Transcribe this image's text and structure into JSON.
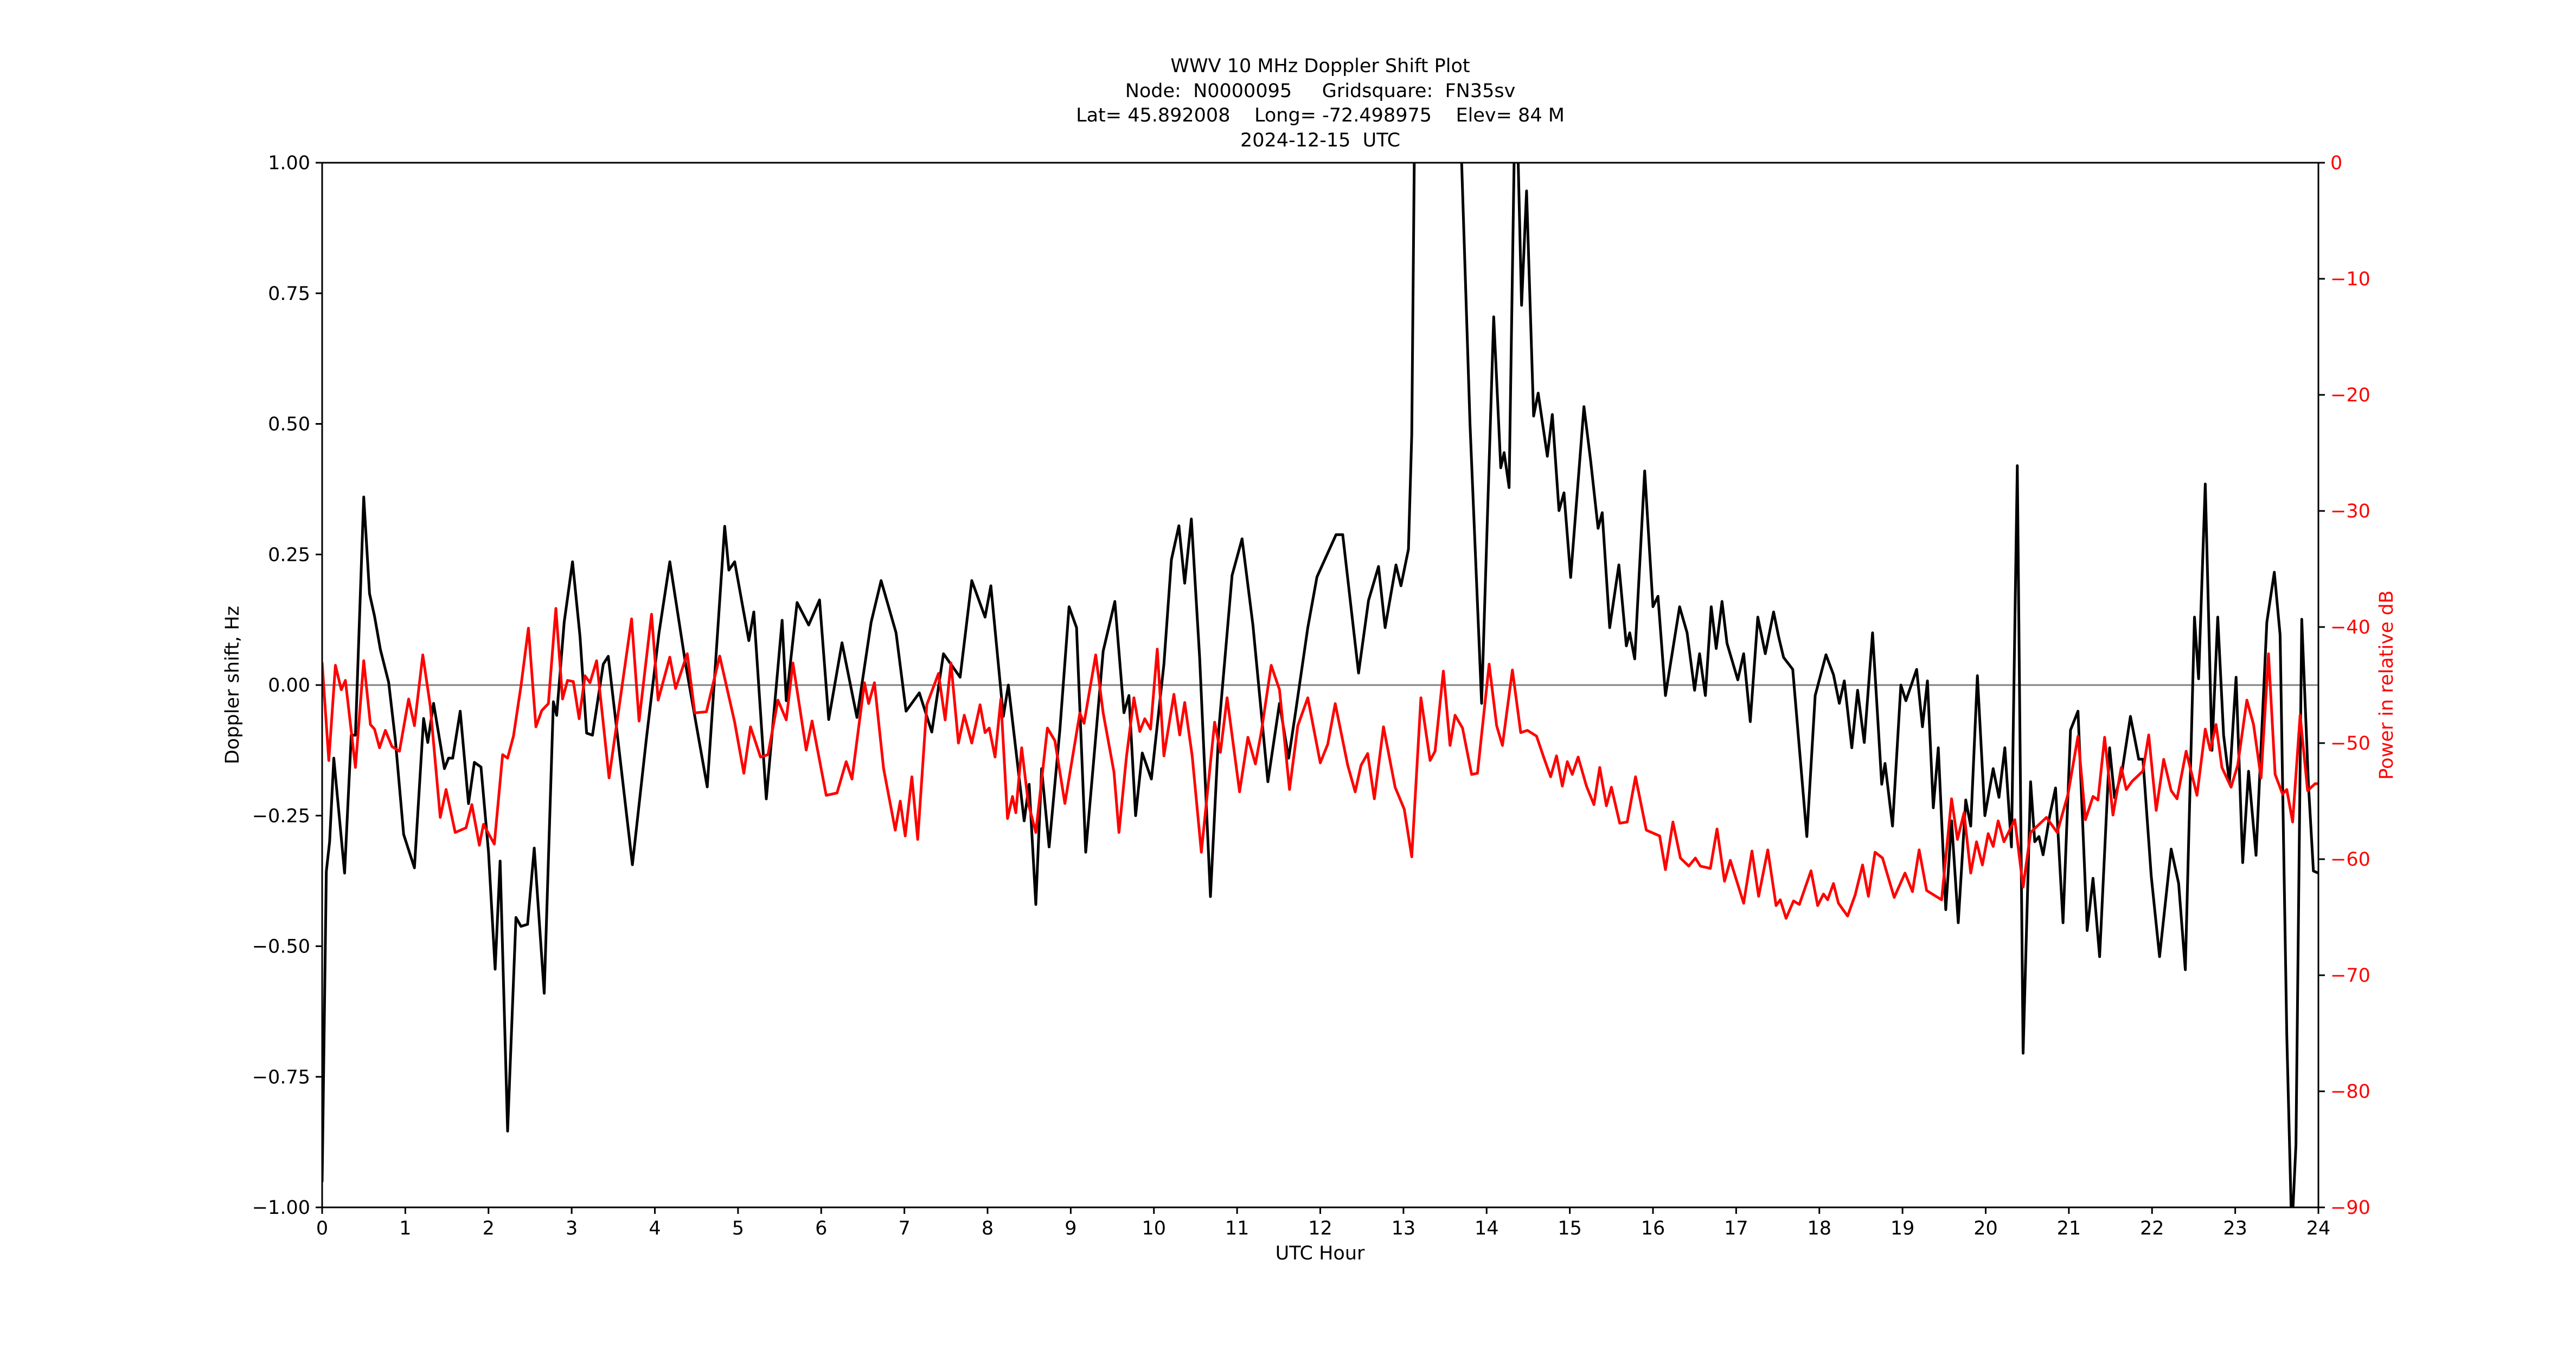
{
  "figure": {
    "title_lines": [
      "WWV 10 MHz Doppler Shift Plot",
      "Node:  N0000095     Gridsquare:  FN35sv",
      "Lat= 45.892008    Long= -72.498975    Elev= 84 M",
      "2024-12-15  UTC"
    ],
    "xlabel": "UTC Hour",
    "ylabel_left": "Doppler shift, Hz",
    "ylabel_right": "Power in relative dB",
    "colors": {
      "doppler": "#000000",
      "power": "#ff0000",
      "zero_line": "#808080",
      "right_axis_text": "#ff0000"
    }
  },
  "chart_data": {
    "type": "line",
    "title": "WWV 10 MHz Doppler Shift Plot",
    "subtitle": "Node:  N0000095     Gridsquare:  FN35sv | Lat= 45.892008    Long= -72.498975    Elev= 84 M | 2024-12-15  UTC",
    "xlabel": "UTC Hour",
    "ylabel": "Doppler shift, Hz",
    "ylabel_right": "Power in relative dB",
    "xlim": [
      0,
      24
    ],
    "ylim": [
      -1.0,
      1.0
    ],
    "ylim_right": [
      -90,
      0
    ],
    "x_ticks": [
      0,
      1,
      2,
      3,
      4,
      5,
      6,
      7,
      8,
      9,
      10,
      11,
      12,
      13,
      14,
      15,
      16,
      17,
      18,
      19,
      20,
      21,
      22,
      23,
      24
    ],
    "y_ticks": [
      "1.00",
      "0.75",
      "0.50",
      "0.25",
      "0.00",
      "−0.25",
      "−0.50",
      "−0.75",
      "−1.00"
    ],
    "y_tick_values": [
      1.0,
      0.75,
      0.5,
      0.25,
      0.0,
      -0.25,
      -0.5,
      -0.75,
      -1.0
    ],
    "y_ticks_right": [
      "0",
      "−10",
      "−20",
      "−30",
      "−40",
      "−50",
      "−60",
      "−70",
      "−80",
      "−90"
    ],
    "y_tick_values_right": [
      0,
      -10,
      -20,
      -30,
      -40,
      -50,
      -60,
      -70,
      -80,
      -90
    ],
    "grid": false,
    "hline": {
      "y": 0.0,
      "color": "#808080"
    },
    "legend": null,
    "series": [
      {
        "name": "Doppler shift (Hz)",
        "axis": "left",
        "color": "#000000",
        "x": [
          0.0,
          0.05,
          0.09,
          0.14,
          0.27,
          0.35,
          0.4,
          0.5,
          0.57,
          0.63,
          0.7,
          0.8,
          0.88,
          0.98,
          1.11,
          1.22,
          1.27,
          1.34,
          1.47,
          1.52,
          1.57,
          1.66,
          1.76,
          1.83,
          1.91,
          2.0,
          2.08,
          2.14,
          2.23,
          2.33,
          2.39,
          2.47,
          2.55,
          2.67,
          2.78,
          2.82,
          2.91,
          3.01,
          3.1,
          3.18,
          3.25,
          3.38,
          3.44,
          3.73,
          3.9,
          4.05,
          4.18,
          4.37,
          4.63,
          4.84,
          4.89,
          4.96,
          5.13,
          5.19,
          5.34,
          5.53,
          5.58,
          5.71,
          5.85,
          5.98,
          6.09,
          6.25,
          6.43,
          6.6,
          6.72,
          6.9,
          7.02,
          7.18,
          7.33,
          7.47,
          7.67,
          7.81,
          7.97,
          8.04,
          8.19,
          8.25,
          8.44,
          8.5,
          8.58,
          8.65,
          8.74,
          8.87,
          8.98,
          9.07,
          9.18,
          9.39,
          9.53,
          9.64,
          9.7,
          9.78,
          9.86,
          9.97,
          10.12,
          10.21,
          10.3,
          10.37,
          10.45,
          10.55,
          10.68,
          10.78,
          10.94,
          11.06,
          11.19,
          11.37,
          11.51,
          11.62,
          11.7,
          11.85,
          11.96,
          12.19,
          12.27,
          12.46,
          12.58,
          12.7,
          12.78,
          12.91,
          12.97,
          13.06,
          13.1,
          13.13,
          13.4,
          13.7,
          13.8,
          13.94,
          14.085,
          14.17,
          14.21,
          14.27,
          14.33,
          14.355,
          14.38,
          14.42,
          14.48,
          14.565,
          14.62,
          14.73,
          14.79,
          14.87,
          14.93,
          15.01,
          15.17,
          15.25,
          15.34,
          15.39,
          15.48,
          15.59,
          15.68,
          15.72,
          15.78,
          15.9,
          16.0,
          16.06,
          16.15,
          16.32,
          16.41,
          16.5,
          16.56,
          16.63,
          16.7,
          16.76,
          16.83,
          16.89,
          17.02,
          17.09,
          17.17,
          17.26,
          17.35,
          17.45,
          17.51,
          17.57,
          17.68,
          17.85,
          17.95,
          18.08,
          18.17,
          18.24,
          18.3,
          18.39,
          18.46,
          18.54,
          18.64,
          18.75,
          18.79,
          18.88,
          18.98,
          19.04,
          19.17,
          19.24,
          19.3,
          19.37,
          19.43,
          19.52,
          19.59,
          19.67,
          19.76,
          19.82,
          19.9,
          19.99,
          20.09,
          20.16,
          20.23,
          20.31,
          20.38,
          20.45,
          20.54,
          20.59,
          20.64,
          20.69,
          20.77,
          20.84,
          20.93,
          21.02,
          21.11,
          21.22,
          21.29,
          21.37,
          21.49,
          21.55,
          21.64,
          21.74,
          21.84,
          21.89,
          21.99,
          22.09,
          22.23,
          22.32,
          22.4,
          22.51,
          22.56,
          22.64,
          22.72,
          22.79,
          22.86,
          22.93,
          23.01,
          23.09,
          23.16,
          23.25,
          23.38,
          23.47,
          23.54,
          23.62,
          23.68,
          23.73,
          23.8,
          23.88,
          23.94,
          24.0
        ],
        "values": [
          -0.95,
          -0.357,
          -0.3,
          -0.14,
          -0.36,
          -0.096,
          -0.096,
          0.36,
          0.175,
          0.132,
          0.068,
          0.005,
          -0.105,
          -0.286,
          -0.35,
          -0.064,
          -0.11,
          -0.035,
          -0.16,
          -0.14,
          -0.14,
          -0.05,
          -0.227,
          -0.148,
          -0.157,
          -0.32,
          -0.544,
          -0.337,
          -0.854,
          -0.445,
          -0.462,
          -0.458,
          -0.312,
          -0.59,
          -0.032,
          -0.058,
          0.12,
          0.236,
          0.093,
          -0.092,
          -0.096,
          0.04,
          0.055,
          -0.344,
          -0.1,
          0.1,
          0.236,
          0.04,
          -0.195,
          0.304,
          0.22,
          0.236,
          0.085,
          0.14,
          -0.218,
          0.124,
          -0.03,
          0.158,
          0.115,
          0.163,
          -0.066,
          0.081,
          -0.062,
          0.12,
          0.2,
          0.1,
          -0.05,
          -0.015,
          -0.09,
          0.06,
          0.015,
          0.2,
          0.13,
          0.19,
          -0.06,
          0.0,
          -0.26,
          -0.19,
          -0.42,
          -0.16,
          -0.31,
          -0.085,
          0.15,
          0.11,
          -0.32,
          0.065,
          0.16,
          -0.053,
          -0.02,
          -0.25,
          -0.13,
          -0.18,
          0.04,
          0.24,
          0.305,
          0.195,
          0.318,
          0.052,
          -0.405,
          -0.085,
          0.21,
          0.28,
          0.115,
          -0.185,
          -0.035,
          -0.14,
          -0.055,
          0.11,
          0.207,
          0.288,
          0.288,
          0.023,
          0.162,
          0.227,
          0.11,
          0.23,
          0.19,
          0.26,
          0.48,
          1.0,
          1.5,
          1.0,
          0.5,
          -0.035,
          0.705,
          0.416,
          0.445,
          0.378,
          1.0,
          1.05,
          1.0,
          0.727,
          0.946,
          0.515,
          0.559,
          0.438,
          0.518,
          0.334,
          0.368,
          0.206,
          0.533,
          0.43,
          0.3,
          0.33,
          0.11,
          0.23,
          0.075,
          0.1,
          0.05,
          0.41,
          0.15,
          0.17,
          -0.02,
          0.15,
          0.1,
          -0.01,
          0.06,
          -0.02,
          0.15,
          0.07,
          0.16,
          0.08,
          0.01,
          0.06,
          -0.07,
          0.13,
          0.06,
          0.14,
          0.093,
          0.053,
          0.03,
          -0.29,
          -0.02,
          0.058,
          0.02,
          -0.035,
          0.008,
          -0.12,
          -0.01,
          -0.11,
          0.1,
          -0.19,
          -0.15,
          -0.27,
          0.0,
          -0.03,
          0.03,
          -0.08,
          0.008,
          -0.235,
          -0.12,
          -0.43,
          -0.26,
          -0.455,
          -0.22,
          -0.27,
          0.018,
          -0.25,
          -0.16,
          -0.215,
          -0.12,
          -0.31,
          0.42,
          -0.705,
          -0.185,
          -0.3,
          -0.29,
          -0.325,
          -0.25,
          -0.197,
          -0.455,
          -0.086,
          -0.05,
          -0.47,
          -0.37,
          -0.52,
          -0.12,
          -0.216,
          -0.165,
          -0.06,
          -0.142,
          -0.142,
          -0.365,
          -0.52,
          -0.314,
          -0.38,
          -0.545,
          0.13,
          0.012,
          0.385,
          -0.125,
          0.13,
          -0.096,
          -0.187,
          0.015,
          -0.34,
          -0.165,
          -0.326,
          0.12,
          0.216,
          0.096,
          -0.67,
          -1.05,
          -0.88,
          0.126,
          -0.19,
          -0.356,
          -0.36
        ]
      },
      {
        "name": "Power (relative dB)",
        "axis": "right",
        "color": "#ff0000",
        "x": [
          0.0,
          0.08,
          0.16,
          0.23,
          0.28,
          0.4,
          0.5,
          0.58,
          0.63,
          0.69,
          0.76,
          0.84,
          0.93,
          1.04,
          1.11,
          1.21,
          1.3,
          1.42,
          1.49,
          1.6,
          1.73,
          1.8,
          1.89,
          1.94,
          2.07,
          2.17,
          2.23,
          2.3,
          2.39,
          2.48,
          2.57,
          2.64,
          2.72,
          2.81,
          2.89,
          2.95,
          3.02,
          3.09,
          3.16,
          3.22,
          3.3,
          3.45,
          3.72,
          3.81,
          3.96,
          4.04,
          4.18,
          4.25,
          4.39,
          4.48,
          4.62,
          4.78,
          4.96,
          5.07,
          5.15,
          5.27,
          5.36,
          5.48,
          5.58,
          5.66,
          5.82,
          5.89,
          6.06,
          6.19,
          6.3,
          6.37,
          6.52,
          6.57,
          6.64,
          6.75,
          6.89,
          6.95,
          7.01,
          7.09,
          7.16,
          7.27,
          7.41,
          7.49,
          7.56,
          7.65,
          7.72,
          7.81,
          7.91,
          7.97,
          8.02,
          8.09,
          8.16,
          8.24,
          8.3,
          8.34,
          8.41,
          8.49,
          8.58,
          8.72,
          8.81,
          8.93,
          9.11,
          9.16,
          9.3,
          9.39,
          9.52,
          9.58,
          9.67,
          9.76,
          9.83,
          9.89,
          9.96,
          10.04,
          10.12,
          10.24,
          10.31,
          10.37,
          10.46,
          10.57,
          10.73,
          10.8,
          10.88,
          11.03,
          11.13,
          11.22,
          11.29,
          11.41,
          11.51,
          11.63,
          11.73,
          11.85,
          12.0,
          12.09,
          12.18,
          12.33,
          12.42,
          12.49,
          12.57,
          12.65,
          12.76,
          12.9,
          13.01,
          13.1,
          13.21,
          13.32,
          13.38,
          13.48,
          13.56,
          13.62,
          13.71,
          13.82,
          13.89,
          14.03,
          14.12,
          14.19,
          14.31,
          14.41,
          14.49,
          14.6,
          14.69,
          14.77,
          14.84,
          14.91,
          14.97,
          15.03,
          15.1,
          15.2,
          15.29,
          15.36,
          15.44,
          15.5,
          15.6,
          15.69,
          15.79,
          15.92,
          16.08,
          16.15,
          16.24,
          16.33,
          16.43,
          16.51,
          16.57,
          16.69,
          16.77,
          16.86,
          16.93,
          17.09,
          17.19,
          17.27,
          17.38,
          17.48,
          17.53,
          17.6,
          17.69,
          17.76,
          17.9,
          17.98,
          18.05,
          18.1,
          18.17,
          18.23,
          18.34,
          18.43,
          18.52,
          18.59,
          18.67,
          18.76,
          18.9,
          19.03,
          19.12,
          19.2,
          19.29,
          19.47,
          19.59,
          19.66,
          19.74,
          19.82,
          19.89,
          19.96,
          20.03,
          20.09,
          20.15,
          20.22,
          20.35,
          20.45,
          20.54,
          20.73,
          20.86,
          20.99,
          21.11,
          21.2,
          21.29,
          21.35,
          21.43,
          21.53,
          21.63,
          21.69,
          21.76,
          21.89,
          21.96,
          22.05,
          22.14,
          22.23,
          22.3,
          22.41,
          22.54,
          22.64,
          22.7,
          22.77,
          22.84,
          22.95,
          23.03,
          23.14,
          23.22,
          23.31,
          23.4,
          23.48,
          23.57,
          23.62,
          23.69,
          23.78,
          23.87,
          23.96,
          24.0
        ],
        "values": [
          -43.1,
          -51.5,
          -43.3,
          -45.4,
          -44.6,
          -52.1,
          -42.9,
          -48.4,
          -48.8,
          -50.4,
          -48.9,
          -50.3,
          -50.7,
          -46.2,
          -48.5,
          -42.4,
          -46.8,
          -56.4,
          -54.0,
          -57.7,
          -57.3,
          -55.3,
          -58.8,
          -57.0,
          -58.7,
          -51.0,
          -51.3,
          -49.4,
          -45.1,
          -40.1,
          -48.6,
          -47.2,
          -46.6,
          -38.4,
          -46.2,
          -44.6,
          -44.7,
          -47.9,
          -44.2,
          -44.8,
          -42.9,
          -53.0,
          -39.3,
          -48.1,
          -38.9,
          -46.3,
          -42.6,
          -45.3,
          -42.3,
          -47.4,
          -47.3,
          -42.5,
          -48.2,
          -52.6,
          -48.6,
          -51.2,
          -51.0,
          -46.3,
          -48.0,
          -43.1,
          -50.6,
          -48.1,
          -54.5,
          -54.3,
          -51.6,
          -53.1,
          -44.8,
          -46.6,
          -44.8,
          -52.2,
          -57.5,
          -55.0,
          -58.0,
          -52.9,
          -58.3,
          -46.7,
          -44.0,
          -48.0,
          -43.1,
          -50.0,
          -47.6,
          -50.0,
          -46.7,
          -49.1,
          -48.7,
          -51.2,
          -46.2,
          -56.5,
          -54.6,
          -56.0,
          -50.4,
          -55.2,
          -57.7,
          -48.7,
          -49.8,
          -55.2,
          -47.4,
          -48.3,
          -42.4,
          -47.4,
          -52.5,
          -57.7,
          -51.2,
          -46.1,
          -49.0,
          -47.9,
          -48.8,
          -41.9,
          -51.1,
          -45.8,
          -49.3,
          -46.5,
          -51.1,
          -59.4,
          -48.2,
          -50.8,
          -46.1,
          -54.2,
          -49.5,
          -51.8,
          -49.1,
          -43.3,
          -45.4,
          -54.0,
          -48.5,
          -46.1,
          -51.7,
          -50.1,
          -46.6,
          -51.9,
          -54.2,
          -51.9,
          -50.9,
          -54.8,
          -48.6,
          -53.8,
          -55.7,
          -59.8,
          -46.1,
          -51.5,
          -50.7,
          -43.8,
          -50.2,
          -47.6,
          -48.7,
          -52.7,
          -52.6,
          -43.2,
          -48.5,
          -50.2,
          -43.7,
          -49.1,
          -48.9,
          -49.4,
          -51.3,
          -52.9,
          -51.1,
          -53.7,
          -51.6,
          -52.7,
          -51.2,
          -53.7,
          -55.3,
          -52.1,
          -55.4,
          -53.8,
          -56.9,
          -56.8,
          -52.9,
          -57.5,
          -58.0,
          -60.9,
          -56.8,
          -59.9,
          -60.6,
          -59.9,
          -60.6,
          -60.8,
          -57.4,
          -61.9,
          -60.1,
          -63.8,
          -59.3,
          -63.2,
          -59.2,
          -64.0,
          -63.5,
          -65.1,
          -63.6,
          -63.9,
          -61.0,
          -64.0,
          -63.0,
          -63.5,
          -62.1,
          -63.8,
          -64.9,
          -63.1,
          -60.5,
          -63.2,
          -59.4,
          -59.9,
          -63.3,
          -61.2,
          -62.8,
          -59.2,
          -62.7,
          -63.5,
          -54.8,
          -58.3,
          -56.0,
          -61.2,
          -58.5,
          -60.5,
          -57.8,
          -58.9,
          -56.7,
          -58.5,
          -56.6,
          -62.4,
          -57.7,
          -56.4,
          -57.7,
          -54.4,
          -49.4,
          -56.6,
          -54.6,
          -54.9,
          -49.5,
          -56.2,
          -52.1,
          -54.0,
          -53.3,
          -52.4,
          -49.3,
          -55.8,
          -51.4,
          -54.1,
          -54.8,
          -50.7,
          -54.5,
          -48.8,
          -50.6,
          -48.4,
          -52.1,
          -53.8,
          -51.9,
          -46.3,
          -48.4,
          -53.0,
          -42.3,
          -52.7,
          -54.4,
          -54.0,
          -56.8,
          -47.6,
          -54.1,
          -53.5,
          -53.5
        ]
      }
    ]
  }
}
